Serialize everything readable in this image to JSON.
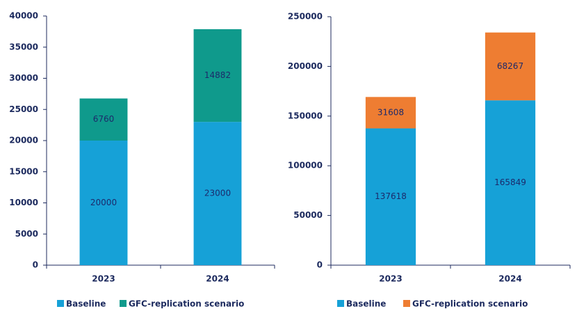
{
  "chart_data": [
    {
      "type": "bar",
      "stacked": true,
      "categories": [
        "2023",
        "2024"
      ],
      "series": [
        {
          "name": "Baseline",
          "color": "#16a1d7",
          "values": [
            20000,
            23000
          ]
        },
        {
          "name": "GFC-replication scenario",
          "color": "#0f9a8c",
          "values": [
            6760,
            14882
          ]
        }
      ],
      "ylim": [
        0,
        40000
      ],
      "yticks": [
        0,
        5000,
        10000,
        15000,
        20000,
        25000,
        30000,
        35000,
        40000
      ],
      "grid": false,
      "legend": "bottom"
    },
    {
      "type": "bar",
      "stacked": true,
      "categories": [
        "2023",
        "2024"
      ],
      "series": [
        {
          "name": "Baseline",
          "color": "#16a1d7",
          "values": [
            137618,
            165849
          ]
        },
        {
          "name": "GFC-replication scenario",
          "color": "#ee7d32",
          "values": [
            31608,
            68267
          ]
        }
      ],
      "ylim": [
        0,
        250000
      ],
      "yticks": [
        0,
        50000,
        100000,
        150000,
        200000,
        250000
      ],
      "grid": false,
      "legend": "bottom"
    }
  ]
}
